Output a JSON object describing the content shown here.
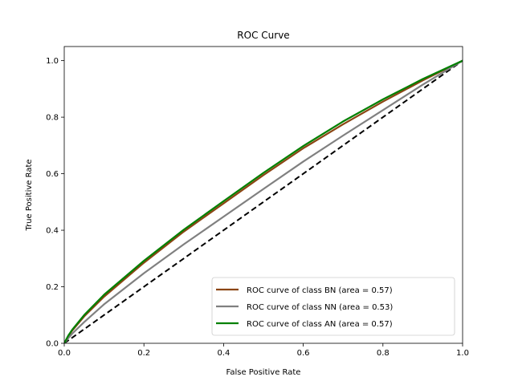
{
  "chart_data": {
    "type": "line",
    "title": "ROC Curve",
    "xlabel": "False Positive Rate",
    "ylabel": "True Positive Rate",
    "xlim": [
      0.0,
      1.0
    ],
    "ylim": [
      0.0,
      1.05
    ],
    "xticks": [
      "0.0",
      "0.2",
      "0.4",
      "0.6",
      "0.8",
      "1.0"
    ],
    "yticks": [
      "0.0",
      "0.2",
      "0.4",
      "0.6",
      "0.8",
      "1.0"
    ],
    "grid": false,
    "legend_position": "lower-right",
    "series": [
      {
        "name": "ROC curve of class BN (area = 0.57)",
        "color": "#8b4513",
        "x": [
          0.0,
          0.01,
          0.02,
          0.05,
          0.1,
          0.2,
          0.3,
          0.4,
          0.5,
          0.6,
          0.7,
          0.8,
          0.9,
          1.0
        ],
        "y": [
          0.0,
          0.025,
          0.045,
          0.095,
          0.165,
          0.285,
          0.395,
          0.495,
          0.595,
          0.69,
          0.775,
          0.855,
          0.93,
          1.0
        ]
      },
      {
        "name": "ROC curve of class NN (area = 0.53)",
        "color": "#808080",
        "x": [
          0.0,
          0.01,
          0.02,
          0.05,
          0.1,
          0.2,
          0.3,
          0.4,
          0.5,
          0.6,
          0.7,
          0.8,
          0.9,
          1.0
        ],
        "y": [
          0.0,
          0.018,
          0.034,
          0.075,
          0.138,
          0.248,
          0.35,
          0.448,
          0.546,
          0.643,
          0.735,
          0.825,
          0.915,
          1.0
        ]
      },
      {
        "name": "ROC curve of class AN (area = 0.57)",
        "color": "#008000",
        "x": [
          0.0,
          0.01,
          0.02,
          0.05,
          0.1,
          0.2,
          0.3,
          0.4,
          0.5,
          0.6,
          0.7,
          0.8,
          0.9,
          1.0
        ],
        "y": [
          0.0,
          0.027,
          0.048,
          0.1,
          0.172,
          0.292,
          0.402,
          0.503,
          0.603,
          0.698,
          0.785,
          0.863,
          0.935,
          1.0
        ]
      }
    ],
    "reference_line": {
      "color": "#000000",
      "x": [
        0.0,
        1.0
      ],
      "y": [
        0.0,
        1.0
      ]
    }
  }
}
